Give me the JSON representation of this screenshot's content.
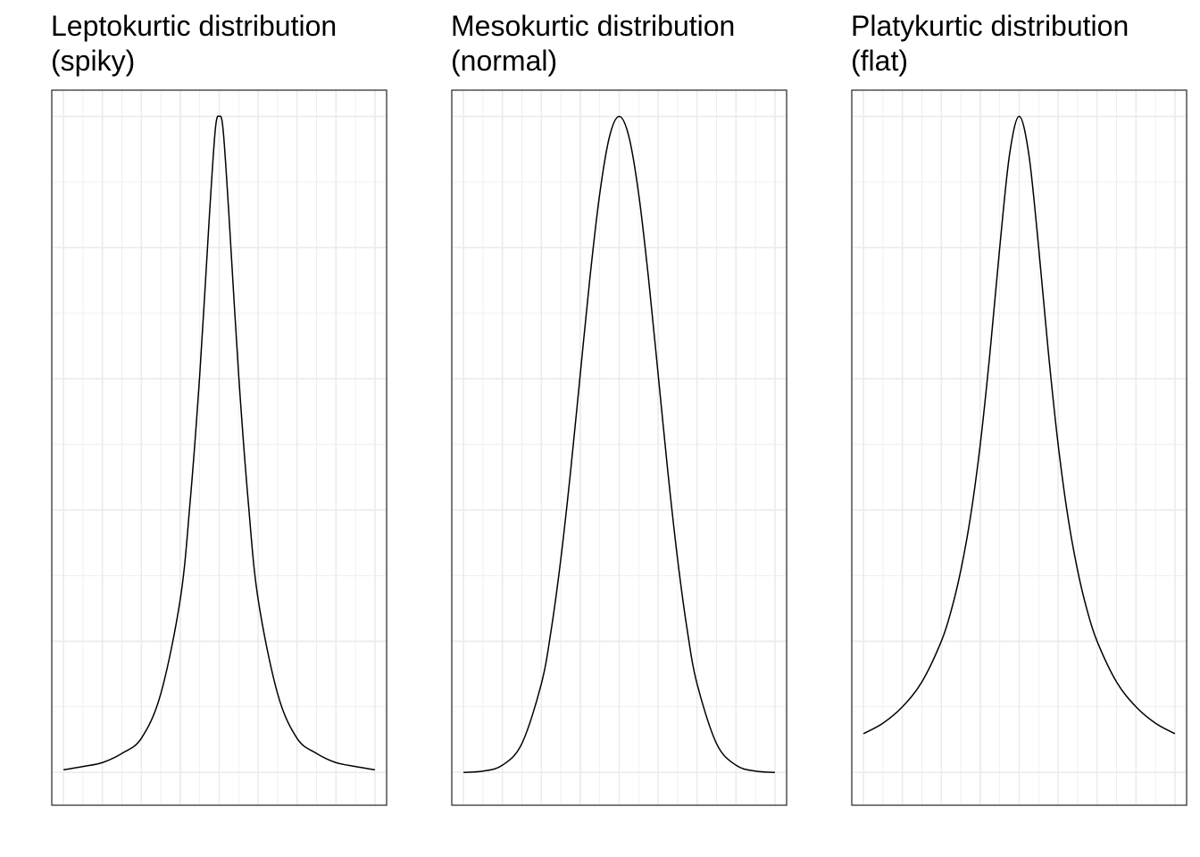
{
  "chart_data": [
    {
      "type": "line",
      "title_line1": "Leptokurtic distribution",
      "title_line2": "(spiky)",
      "distribution": "laplace",
      "x": [
        -4,
        -3.5,
        -3,
        -2.5,
        -2,
        -1.5,
        -1,
        -0.75,
        -0.5,
        -0.25,
        -0.1,
        0,
        0.1,
        0.25,
        0.5,
        0.75,
        1,
        1.5,
        2,
        2.5,
        3,
        3.5,
        4
      ],
      "y": [
        0.004,
        0.009,
        0.015,
        0.029,
        0.052,
        0.12,
        0.264,
        0.41,
        0.606,
        0.85,
        0.98,
        1.0,
        0.98,
        0.85,
        0.606,
        0.41,
        0.264,
        0.12,
        0.052,
        0.029,
        0.015,
        0.009,
        0.004
      ],
      "xlim": [
        -4.3,
        4.3
      ],
      "ylim": [
        -0.05,
        1.04
      ],
      "grid": true,
      "axis_labels_shown": false
    },
    {
      "type": "line",
      "title_line1": "Mesokurtic distribution",
      "title_line2": "(normal)",
      "distribution": "normal",
      "x": [
        -4,
        -3.5,
        -3,
        -2.5,
        -2,
        -1.75,
        -1.5,
        -1.25,
        -1,
        -0.75,
        -0.5,
        -0.25,
        0,
        0.25,
        0.5,
        0.75,
        1,
        1.25,
        1.5,
        1.75,
        2,
        2.5,
        3,
        3.5,
        4
      ],
      "y": [
        0.0,
        0.002,
        0.011,
        0.044,
        0.135,
        0.216,
        0.325,
        0.458,
        0.607,
        0.755,
        0.882,
        0.969,
        1.0,
        0.969,
        0.882,
        0.755,
        0.607,
        0.458,
        0.325,
        0.216,
        0.135,
        0.044,
        0.011,
        0.002,
        0.0
      ],
      "xlim": [
        -4.3,
        4.3
      ],
      "ylim": [
        -0.05,
        1.04
      ],
      "grid": true,
      "axis_labels_shown": false
    },
    {
      "type": "line",
      "title_line1": "Platykurtic distribution",
      "title_line2": "(flat)",
      "distribution": "cauchy",
      "x": [
        -4,
        -3.5,
        -3,
        -2.5,
        -2,
        -1.75,
        -1.5,
        -1.25,
        -1,
        -0.75,
        -0.5,
        -0.25,
        0,
        0.25,
        0.5,
        0.75,
        1,
        1.25,
        1.5,
        1.75,
        2,
        2.5,
        3,
        3.5,
        4
      ],
      "y": [
        0.059,
        0.075,
        0.1,
        0.138,
        0.2,
        0.246,
        0.308,
        0.39,
        0.5,
        0.64,
        0.8,
        0.941,
        1.0,
        0.941,
        0.8,
        0.64,
        0.5,
        0.39,
        0.308,
        0.246,
        0.2,
        0.138,
        0.1,
        0.075,
        0.059
      ],
      "xlim": [
        -4.3,
        4.3
      ],
      "ylim": [
        -0.05,
        1.04
      ],
      "grid": true,
      "axis_labels_shown": false
    }
  ]
}
